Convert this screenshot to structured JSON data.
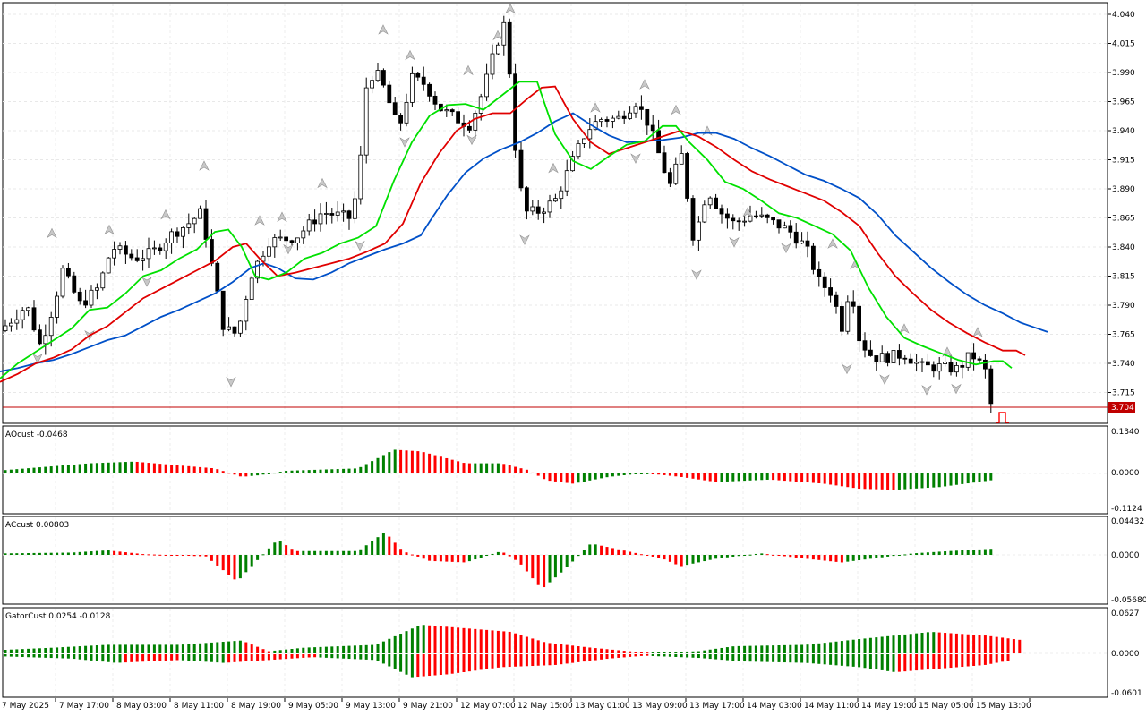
{
  "indicators": {
    "ao": {
      "title": "AOcust -0.0468",
      "ticks": [
        "0.1340",
        "0.0000",
        "-0.1124"
      ],
      "up_color": "#008000",
      "down_color": "#ff0000"
    },
    "ac": {
      "title": "ACcust 0.00803",
      "ticks": [
        "0.04432",
        "0.0000",
        "-0.05680"
      ],
      "up_color": "#008000",
      "down_color": "#ff0000"
    },
    "gator": {
      "title": "GatorCust 0.0254 -0.0128",
      "ticks": [
        "0.0627",
        "0.0000",
        "-0.0601"
      ],
      "up_color": "#008000",
      "down_color": "#ff0000"
    }
  },
  "price_axis": {
    "ticks": [
      "4.040",
      "4.015",
      "3.990",
      "3.965",
      "3.940",
      "3.915",
      "3.890",
      "3.865",
      "3.840",
      "3.815",
      "3.790",
      "3.765",
      "3.740",
      "3.715"
    ],
    "current_price": "3.704",
    "current_price_color": "#c00000"
  },
  "time_axis": {
    "labels": [
      "7 May 2025",
      "7 May 17:00",
      "8 May 03:00",
      "8 May 11:00",
      "8 May 19:00",
      "9 May 05:00",
      "9 May 13:00",
      "9 May 21:00",
      "12 May 07:00",
      "12 May 15:00",
      "13 May 01:00",
      "13 May 09:00",
      "13 May 17:00",
      "14 May 03:00",
      "14 May 11:00",
      "14 May 19:00",
      "15 May 05:00",
      "15 May 13:00"
    ]
  },
  "alligator": {
    "jaw_color": "#0050c8",
    "teeth_color": "#e00000",
    "lips_color": "#00e000",
    "jaw": [
      [
        0,
        3.733
      ],
      [
        20,
        3.736
      ],
      [
        40,
        3.74
      ],
      [
        60,
        3.743
      ],
      [
        80,
        3.748
      ],
      [
        100,
        3.754
      ],
      [
        120,
        3.76
      ],
      [
        140,
        3.764
      ],
      [
        160,
        3.772
      ],
      [
        180,
        3.78
      ],
      [
        200,
        3.786
      ],
      [
        220,
        3.793
      ],
      [
        240,
        3.8
      ],
      [
        260,
        3.81
      ],
      [
        280,
        3.822
      ],
      [
        295,
        3.826
      ],
      [
        310,
        3.822
      ],
      [
        330,
        3.813
      ],
      [
        350,
        3.812
      ],
      [
        370,
        3.818
      ],
      [
        390,
        3.826
      ],
      [
        410,
        3.832
      ],
      [
        430,
        3.838
      ],
      [
        450,
        3.843
      ],
      [
        470,
        3.85
      ],
      [
        480,
        3.862
      ],
      [
        500,
        3.885
      ],
      [
        520,
        3.904
      ],
      [
        540,
        3.916
      ],
      [
        560,
        3.924
      ],
      [
        580,
        3.93
      ],
      [
        600,
        3.938
      ],
      [
        620,
        3.948
      ],
      [
        640,
        3.955
      ],
      [
        660,
        3.945
      ],
      [
        680,
        3.936
      ],
      [
        700,
        3.93
      ],
      [
        720,
        3.931
      ],
      [
        740,
        3.932
      ],
      [
        760,
        3.934
      ],
      [
        780,
        3.938
      ],
      [
        800,
        3.938
      ],
      [
        820,
        3.933
      ],
      [
        840,
        3.925
      ],
      [
        860,
        3.918
      ],
      [
        880,
        3.91
      ],
      [
        900,
        3.902
      ],
      [
        920,
        3.897
      ],
      [
        940,
        3.89
      ],
      [
        960,
        3.882
      ],
      [
        980,
        3.868
      ],
      [
        1000,
        3.85
      ],
      [
        1020,
        3.836
      ],
      [
        1040,
        3.822
      ],
      [
        1060,
        3.81
      ],
      [
        1080,
        3.799
      ],
      [
        1100,
        3.79
      ],
      [
        1120,
        3.783
      ],
      [
        1140,
        3.775
      ],
      [
        1155,
        3.771
      ],
      [
        1170,
        3.767
      ]
    ],
    "teeth": [
      [
        0,
        3.724
      ],
      [
        20,
        3.731
      ],
      [
        40,
        3.74
      ],
      [
        60,
        3.745
      ],
      [
        80,
        3.752
      ],
      [
        100,
        3.764
      ],
      [
        120,
        3.772
      ],
      [
        140,
        3.784
      ],
      [
        160,
        3.796
      ],
      [
        180,
        3.804
      ],
      [
        200,
        3.812
      ],
      [
        220,
        3.82
      ],
      [
        240,
        3.828
      ],
      [
        260,
        3.84
      ],
      [
        275,
        3.843
      ],
      [
        290,
        3.83
      ],
      [
        310,
        3.815
      ],
      [
        330,
        3.818
      ],
      [
        350,
        3.822
      ],
      [
        370,
        3.826
      ],
      [
        390,
        3.83
      ],
      [
        410,
        3.836
      ],
      [
        430,
        3.843
      ],
      [
        450,
        3.86
      ],
      [
        470,
        3.895
      ],
      [
        490,
        3.92
      ],
      [
        510,
        3.94
      ],
      [
        530,
        3.95
      ],
      [
        550,
        3.955
      ],
      [
        570,
        3.955
      ],
      [
        590,
        3.968
      ],
      [
        605,
        3.977
      ],
      [
        620,
        3.978
      ],
      [
        640,
        3.95
      ],
      [
        660,
        3.93
      ],
      [
        680,
        3.92
      ],
      [
        700,
        3.925
      ],
      [
        720,
        3.93
      ],
      [
        740,
        3.935
      ],
      [
        760,
        3.94
      ],
      [
        780,
        3.935
      ],
      [
        800,
        3.926
      ],
      [
        820,
        3.915
      ],
      [
        840,
        3.905
      ],
      [
        860,
        3.898
      ],
      [
        880,
        3.892
      ],
      [
        900,
        3.886
      ],
      [
        920,
        3.88
      ],
      [
        940,
        3.87
      ],
      [
        960,
        3.858
      ],
      [
        980,
        3.835
      ],
      [
        1000,
        3.815
      ],
      [
        1020,
        3.8
      ],
      [
        1040,
        3.786
      ],
      [
        1060,
        3.775
      ],
      [
        1080,
        3.766
      ],
      [
        1100,
        3.758
      ],
      [
        1120,
        3.751
      ],
      [
        1135,
        3.751
      ],
      [
        1145,
        3.747
      ]
    ],
    "lips": [
      [
        0,
        3.727
      ],
      [
        20,
        3.74
      ],
      [
        40,
        3.75
      ],
      [
        60,
        3.76
      ],
      [
        80,
        3.77
      ],
      [
        100,
        3.786
      ],
      [
        120,
        3.788
      ],
      [
        140,
        3.8
      ],
      [
        160,
        3.815
      ],
      [
        180,
        3.82
      ],
      [
        200,
        3.83
      ],
      [
        220,
        3.838
      ],
      [
        240,
        3.853
      ],
      [
        255,
        3.855
      ],
      [
        270,
        3.84
      ],
      [
        285,
        3.815
      ],
      [
        300,
        3.812
      ],
      [
        320,
        3.818
      ],
      [
        340,
        3.83
      ],
      [
        360,
        3.835
      ],
      [
        380,
        3.843
      ],
      [
        400,
        3.848
      ],
      [
        420,
        3.858
      ],
      [
        440,
        3.897
      ],
      [
        460,
        3.93
      ],
      [
        480,
        3.953
      ],
      [
        500,
        3.962
      ],
      [
        520,
        3.963
      ],
      [
        540,
        3.958
      ],
      [
        560,
        3.97
      ],
      [
        580,
        3.982
      ],
      [
        600,
        3.982
      ],
      [
        620,
        3.937
      ],
      [
        640,
        3.914
      ],
      [
        660,
        3.907
      ],
      [
        680,
        3.918
      ],
      [
        700,
        3.928
      ],
      [
        720,
        3.931
      ],
      [
        740,
        3.944
      ],
      [
        755,
        3.944
      ],
      [
        770,
        3.93
      ],
      [
        790,
        3.915
      ],
      [
        810,
        3.896
      ],
      [
        830,
        3.89
      ],
      [
        850,
        3.88
      ],
      [
        870,
        3.869
      ],
      [
        890,
        3.865
      ],
      [
        910,
        3.858
      ],
      [
        930,
        3.851
      ],
      [
        950,
        3.837
      ],
      [
        970,
        3.805
      ],
      [
        990,
        3.78
      ],
      [
        1010,
        3.762
      ],
      [
        1030,
        3.755
      ],
      [
        1050,
        3.749
      ],
      [
        1070,
        3.743
      ],
      [
        1090,
        3.739
      ],
      [
        1110,
        3.742
      ],
      [
        1120,
        3.742
      ],
      [
        1130,
        3.736
      ]
    ]
  }
}
